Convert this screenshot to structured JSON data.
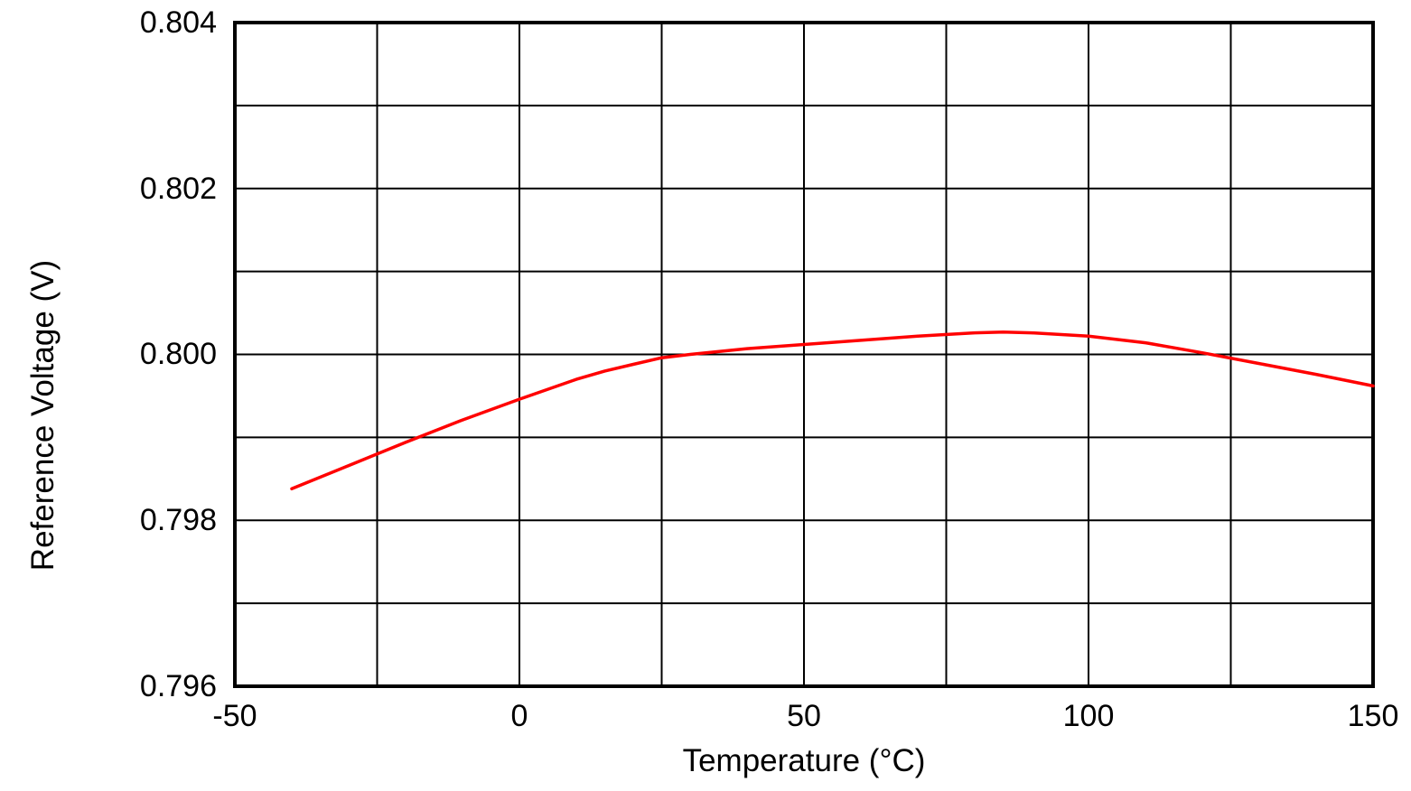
{
  "figure": {
    "background": "#ffffff",
    "grid_color": "#000000",
    "border_color": "#000000"
  },
  "chart_data": {
    "type": "line",
    "title": "",
    "xlabel": "Temperature (°C)",
    "ylabel": "Reference Voltage (V)",
    "xlim": [
      -50,
      150
    ],
    "ylim": [
      0.796,
      0.804
    ],
    "x_gridline_step": 25,
    "y_gridline_step": 0.001,
    "grid": true,
    "legend": false,
    "xtick_values": [
      -50,
      0,
      50,
      100,
      150
    ],
    "xtick_labels": [
      "-50",
      "0",
      "50",
      "100",
      "150"
    ],
    "ytick_values": [
      0.804,
      0.802,
      0.8,
      0.798,
      0.796
    ],
    "ytick_labels": [
      "0.804",
      "0.802",
      "0.800",
      "0.798",
      "0.796"
    ],
    "series": [
      {
        "name": "reference-voltage-vs-temperature",
        "color": "#ff0000",
        "x": [
          -40,
          -30,
          -20,
          -10,
          0,
          10,
          15,
          20,
          25,
          30,
          40,
          50,
          60,
          70,
          80,
          85,
          90,
          100,
          110,
          120,
          130,
          140,
          150
        ],
        "y": [
          0.79838,
          0.79866,
          0.79894,
          0.79921,
          0.79946,
          0.7997,
          0.7998,
          0.79988,
          0.79996,
          0.8,
          0.80007,
          0.80012,
          0.80017,
          0.80022,
          0.80026,
          0.80027,
          0.80026,
          0.80022,
          0.80014,
          0.80002,
          0.79989,
          0.79976,
          0.79962
        ]
      }
    ]
  }
}
